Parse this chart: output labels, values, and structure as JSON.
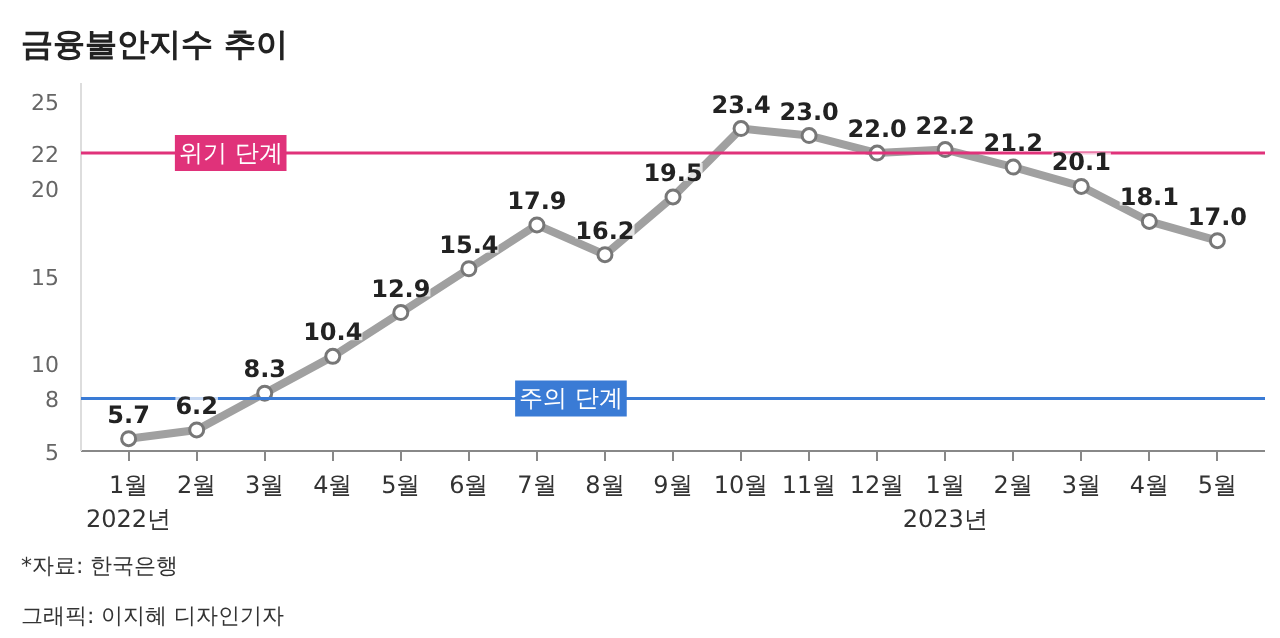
{
  "chart_data": {
    "type": "line",
    "title": "금융불안지수 추이",
    "categories": [
      "1월\n2022년",
      "2월",
      "3월",
      "4월",
      "5월",
      "6월",
      "7월",
      "8월",
      "9월",
      "10월",
      "11월",
      "12월",
      "1월\n2023년",
      "2월",
      "3월",
      "4월",
      "5월"
    ],
    "series": [
      {
        "color": "#a0a0a0",
        "values": [
          5.7,
          6.2,
          8.3,
          10.4,
          12.9,
          15.4,
          17.9,
          16.2,
          19.5,
          23.4,
          23.0,
          22.0,
          22.2,
          21.2,
          20.1,
          18.1,
          17.0
        ]
      }
    ],
    "ylim": [
      5,
      26
    ],
    "yticks": [
      5,
      8,
      10,
      15,
      20,
      22,
      25
    ],
    "ref_lines": [
      {
        "axis": "y",
        "value": 22,
        "label": "위기 단계",
        "color": "#e0327a"
      },
      {
        "axis": "y",
        "value": 8,
        "label": "주의 단계",
        "color": "#3a7bd5"
      }
    ],
    "value_labels": [
      "5.7",
      "6.2",
      "8.3",
      "10.4",
      "12.9",
      "15.4",
      "17.9",
      "16.2",
      "19.5",
      "23.4",
      "23.0",
      "22.0",
      "22.2",
      "21.2",
      "20.1",
      "18.1",
      "17.0"
    ],
    "marker": "circle",
    "line_style": "solid",
    "grid": false,
    "annotations": [
      "*자료: 한국은행",
      "그래픽: 이지혜 디자인기자"
    ]
  }
}
